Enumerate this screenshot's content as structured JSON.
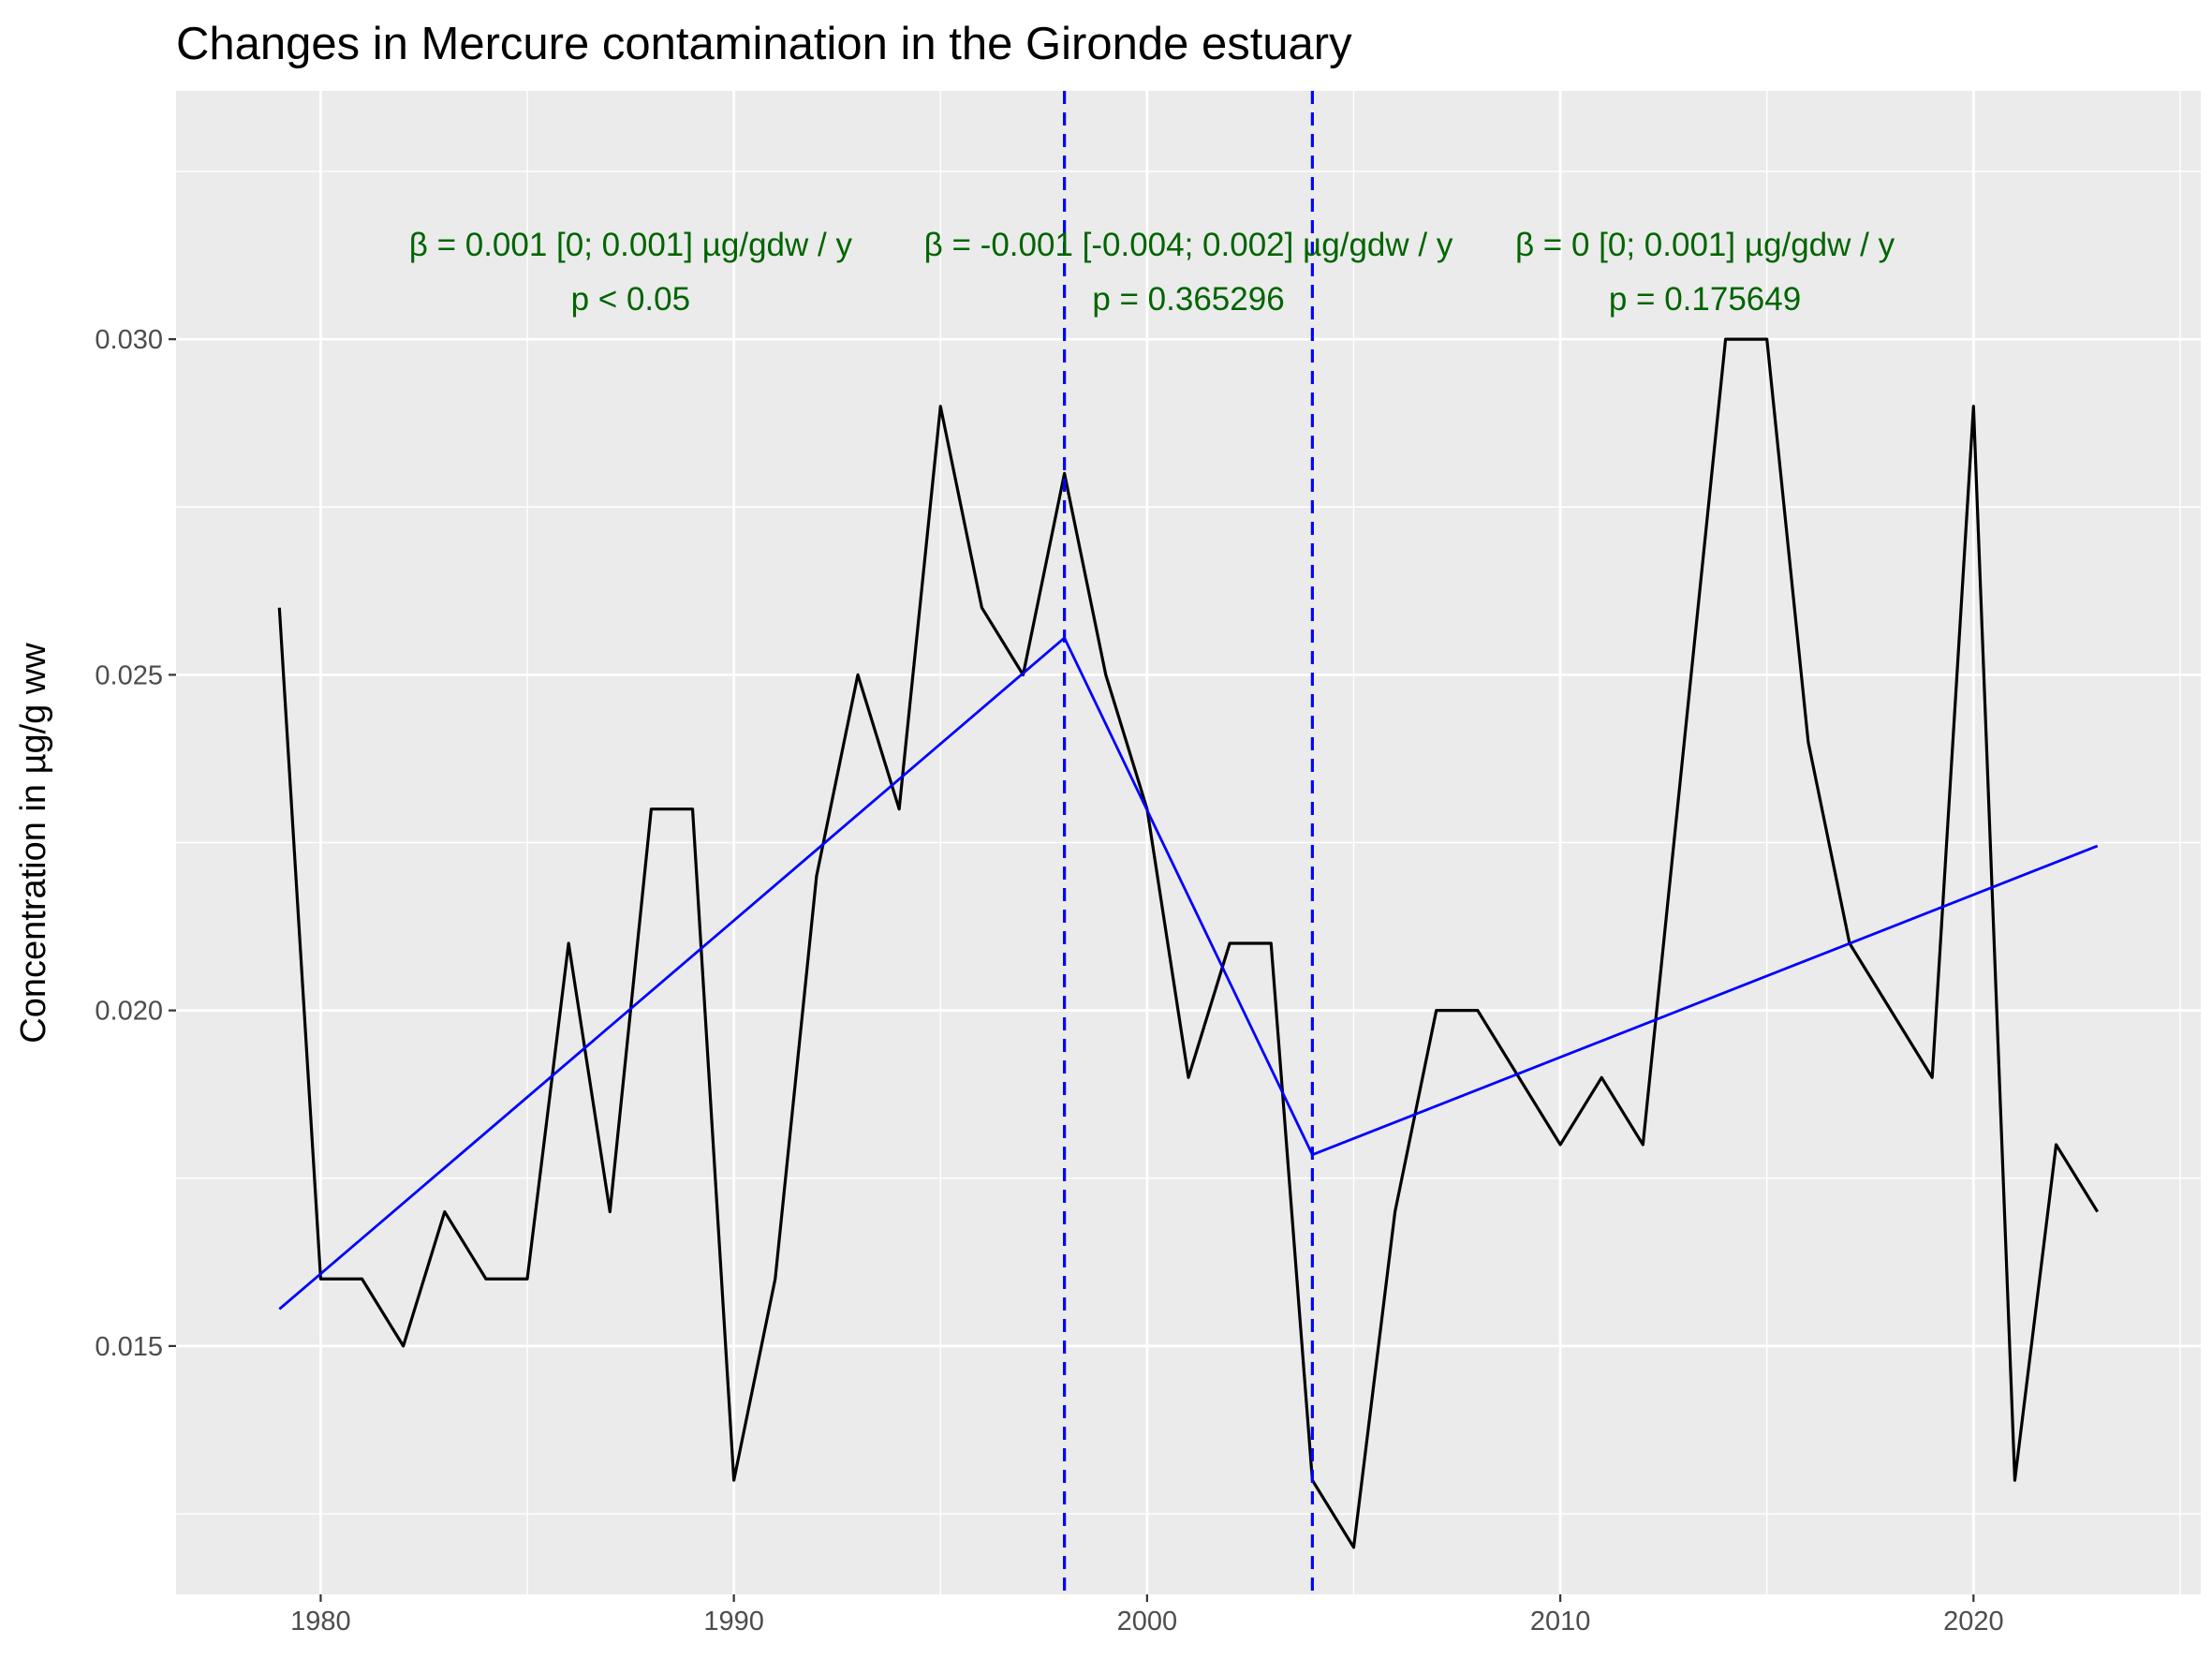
{
  "chart_data": {
    "type": "line",
    "title": "Changes in Mercure contamination in the Gironde estuary",
    "xlabel": "",
    "ylabel": "Concentration in µg/g ww",
    "xlim": [
      1976.5,
      2025.5
    ],
    "ylim": [
      0.0113,
      0.0337
    ],
    "x_ticks": [
      1980,
      1990,
      2000,
      2010,
      2020
    ],
    "x_tick_labels": [
      "1980",
      "1990",
      "2000",
      "2010",
      "2020"
    ],
    "y_ticks": [
      0.015,
      0.02,
      0.025,
      0.03
    ],
    "y_tick_labels": [
      "0.015",
      "0.020",
      "0.025",
      "0.030"
    ],
    "grid": true,
    "series": [
      {
        "color": "#000000",
        "x": [
          1979,
          1980,
          1981,
          1982,
          1983,
          1984,
          1985,
          1986,
          1987,
          1988,
          1989,
          1990,
          1991,
          1992,
          1993,
          1994,
          1995,
          1996,
          1997,
          1998,
          1999,
          2000,
          2001,
          2002,
          2003,
          2004,
          2005,
          2006,
          2007,
          2008,
          2009,
          2010,
          2011,
          2012,
          2013,
          2014,
          2015,
          2016,
          2017,
          2018,
          2019,
          2020,
          2021,
          2022,
          2023
        ],
        "y": [
          0.026,
          0.016,
          0.016,
          0.015,
          0.017,
          0.016,
          0.016,
          0.021,
          0.017,
          0.023,
          0.023,
          0.013,
          0.016,
          0.022,
          0.025,
          0.023,
          0.029,
          0.026,
          0.025,
          0.028,
          0.025,
          0.023,
          0.019,
          0.021,
          0.021,
          0.013,
          0.012,
          0.017,
          0.02,
          0.02,
          0.019,
          0.018,
          0.019,
          0.018,
          0.024,
          0.03,
          0.03,
          0.024,
          0.021,
          0.02,
          0.019,
          0.029,
          0.013,
          0.018,
          0.017
        ]
      },
      {
        "color": "#0000ff",
        "x": [
          1979,
          1998,
          2004,
          2023
        ],
        "y": [
          0.01555,
          0.02555,
          0.01785,
          0.02245
        ]
      }
    ],
    "breakpoints": [
      1998,
      2004
    ],
    "breakpoint_color": "#0000ff",
    "annotation_color": "#006400",
    "annotations": [
      {
        "x": 1987.5,
        "line1": "β = 0.001 [0; 0.001] µg/gdw / y",
        "line2": "p < 0.05"
      },
      {
        "x": 2001.0,
        "line1": "β = -0.001 [-0.004; 0.002] µg/gdw / y",
        "line2": "p = 0.365296"
      },
      {
        "x": 2013.5,
        "line1": "β = 0 [0; 0.001] µg/gdw / y",
        "line2": "p = 0.175649"
      }
    ]
  }
}
